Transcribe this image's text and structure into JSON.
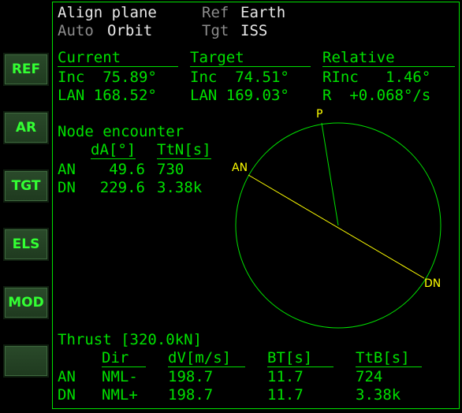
{
  "buttons": [
    "REF",
    "AR",
    "TGT",
    "ELS",
    "MOD",
    ""
  ],
  "header": {
    "mode": "Align plane",
    "ref_label": "Ref",
    "ref_value": "Earth",
    "auto_label": "Auto",
    "auto_value": "Orbit",
    "tgt_label": "Tgt",
    "tgt_value": "ISS"
  },
  "columns": {
    "current": "Current",
    "target": "Target",
    "relative": "Relative"
  },
  "current": {
    "inc": "Inc  75.89°",
    "lan": "LAN 168.52°"
  },
  "target": {
    "inc": "Inc  74.51°",
    "lan": "LAN 169.03°"
  },
  "relative": {
    "rinc": "RInc   1.46°",
    "rate": "R  +0.068°/s"
  },
  "node": {
    "title": "Node encounter",
    "col_da": "dA[°]",
    "col_ttn": "TtN[s]",
    "an": {
      "name": "AN",
      "da": "49.6",
      "ttn": "730"
    },
    "dn": {
      "name": "DN",
      "da": "229.6",
      "ttn": "3.38k"
    }
  },
  "diagram": {
    "p_label": "P",
    "an_label": "AN",
    "dn_label": "DN",
    "colors": {
      "circle": "#00e000",
      "node_line": "#ffff00",
      "label": "#ffff00"
    }
  },
  "thrust": {
    "title": "Thrust [320.0kN]",
    "headers": {
      "dir": "Dir",
      "dv": "dV[m/s]",
      "bt": "BT[s]",
      "ttb": "TtB[s]"
    },
    "an": {
      "name": "AN",
      "dir": "NML-",
      "dv": "198.7",
      "bt": "11.7",
      "ttb": "724"
    },
    "dn": {
      "name": "DN",
      "dir": "NML+",
      "dv": "198.7",
      "bt": "11.7",
      "ttb": "3.38k"
    }
  }
}
